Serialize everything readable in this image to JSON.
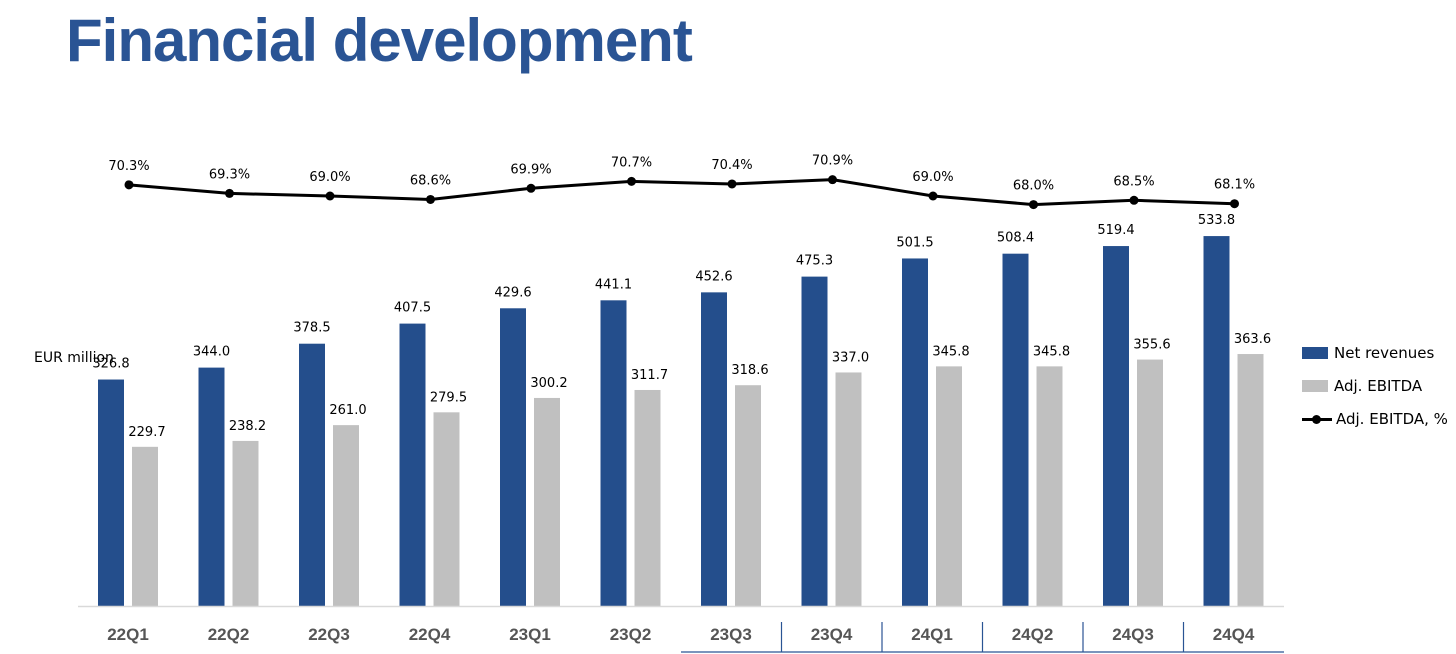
{
  "page": {
    "title": "Financial development",
    "unit_label": "EUR million"
  },
  "colors": {
    "title": "#2A5494",
    "net_revenues": "#244E8C",
    "adj_ebitda": "#C0C0C0",
    "margin_line": "#000000",
    "axis": "#D9D9D9",
    "bracket": "#2A5494"
  },
  "chart_data": {
    "type": "bar",
    "title": "Financial development",
    "ylabel": "EUR million",
    "xlabel": "",
    "ylim": [
      0,
      600
    ],
    "categories": [
      "22Q1",
      "22Q2",
      "22Q3",
      "22Q4",
      "23Q1",
      "23Q2",
      "23Q3",
      "23Q4",
      "24Q1",
      "24Q2",
      "24Q3",
      "24Q4"
    ],
    "series": [
      {
        "name": "Net revenues",
        "type": "bar",
        "values": [
          326.8,
          344.0,
          378.5,
          407.5,
          429.6,
          441.1,
          452.6,
          475.3,
          501.5,
          508.4,
          519.4,
          533.8
        ],
        "labels": [
          "326.8",
          "344.0",
          "378.5",
          "407.5",
          "429.6",
          "441.1",
          "452.6",
          "475.3",
          "501.5",
          "508.4",
          "519.4",
          "533.8"
        ]
      },
      {
        "name": "Adj. EBITDA",
        "type": "bar",
        "values": [
          229.7,
          238.2,
          261.0,
          279.5,
          300.2,
          311.7,
          318.6,
          337.0,
          345.8,
          345.8,
          355.6,
          363.6
        ],
        "labels": [
          "229.7",
          "238.2",
          "261.0",
          "279.5",
          "300.2",
          "311.7",
          "318.6",
          "337.0",
          "345.8",
          "345.8",
          "355.6",
          "363.6"
        ]
      },
      {
        "name": "Adj. EBITDA, %",
        "type": "line",
        "values": [
          70.3,
          69.3,
          69.0,
          68.6,
          69.9,
          70.7,
          70.4,
          70.9,
          69.0,
          68.0,
          68.5,
          68.1
        ],
        "labels": [
          "70.3%",
          "69.3%",
          "69.0%",
          "68.6%",
          "69.9%",
          "70.7%",
          "70.4%",
          "70.9%",
          "69.0%",
          "68.0%",
          "68.5%",
          "68.1%"
        ]
      }
    ],
    "legend": [
      "Net revenues",
      "Adj. EBITDA",
      "Adj. EBITDA, %"
    ],
    "legend_position": "right",
    "highlighted_categories": [
      "23Q3",
      "23Q4",
      "24Q1",
      "24Q2",
      "24Q3",
      "24Q4"
    ]
  }
}
